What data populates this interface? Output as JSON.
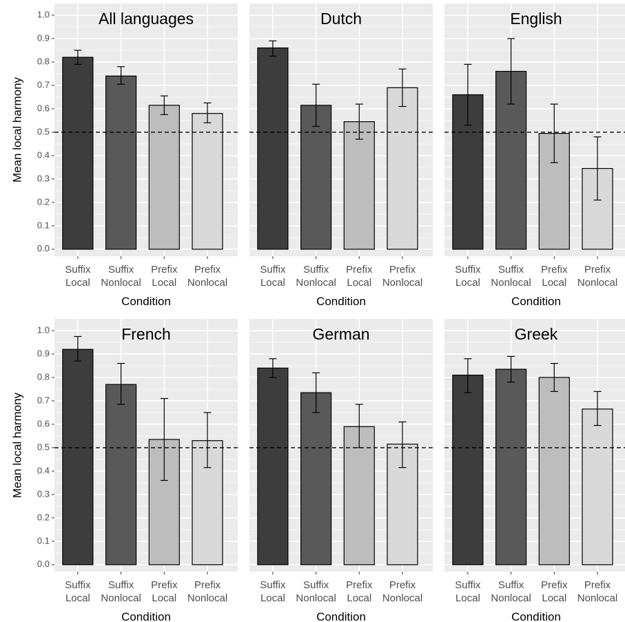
{
  "chart_data": {
    "type": "bar",
    "ylabel": "Mean local harmony",
    "xlabel": "Condition",
    "ylim": [
      -0.03,
      1.05
    ],
    "yticks": [
      "0.0",
      "0.1",
      "0.2",
      "0.3",
      "0.4",
      "0.5",
      "0.6",
      "0.7",
      "0.8",
      "0.9",
      "1.0"
    ],
    "reference_line": 0.5,
    "categories": [
      [
        "Suffix",
        "Local"
      ],
      [
        "Suffix",
        "Nonlocal"
      ],
      [
        "Prefix",
        "Local"
      ],
      [
        "Prefix",
        "Nonlocal"
      ]
    ],
    "bar_colors": [
      "#3d3d3d",
      "#595959",
      "#bdbdbd",
      "#d9d9d9"
    ],
    "panel_background": "#ebebeb",
    "grid": true,
    "panels": [
      {
        "title": "All languages",
        "values": [
          0.82,
          0.74,
          0.615,
          0.58
        ],
        "err_low": [
          0.79,
          0.705,
          0.575,
          0.54
        ],
        "err_high": [
          0.85,
          0.78,
          0.655,
          0.625
        ]
      },
      {
        "title": "Dutch",
        "values": [
          0.86,
          0.615,
          0.545,
          0.69
        ],
        "err_low": [
          0.825,
          0.525,
          0.47,
          0.61
        ],
        "err_high": [
          0.89,
          0.705,
          0.62,
          0.77
        ]
      },
      {
        "title": "English",
        "values": [
          0.66,
          0.76,
          0.495,
          0.345
        ],
        "err_low": [
          0.53,
          0.62,
          0.37,
          0.21
        ],
        "err_high": [
          0.79,
          0.9,
          0.62,
          0.48
        ]
      },
      {
        "title": "French",
        "values": [
          0.92,
          0.77,
          0.535,
          0.53
        ],
        "err_low": [
          0.87,
          0.685,
          0.36,
          0.415
        ],
        "err_high": [
          0.975,
          0.86,
          0.71,
          0.65
        ]
      },
      {
        "title": "German",
        "values": [
          0.84,
          0.735,
          0.59,
          0.515
        ],
        "err_low": [
          0.8,
          0.65,
          0.5,
          0.415
        ],
        "err_high": [
          0.88,
          0.82,
          0.685,
          0.61
        ]
      },
      {
        "title": "Greek",
        "values": [
          0.81,
          0.835,
          0.8,
          0.665
        ],
        "err_low": [
          0.735,
          0.78,
          0.74,
          0.595
        ],
        "err_high": [
          0.88,
          0.89,
          0.86,
          0.74
        ]
      }
    ]
  }
}
